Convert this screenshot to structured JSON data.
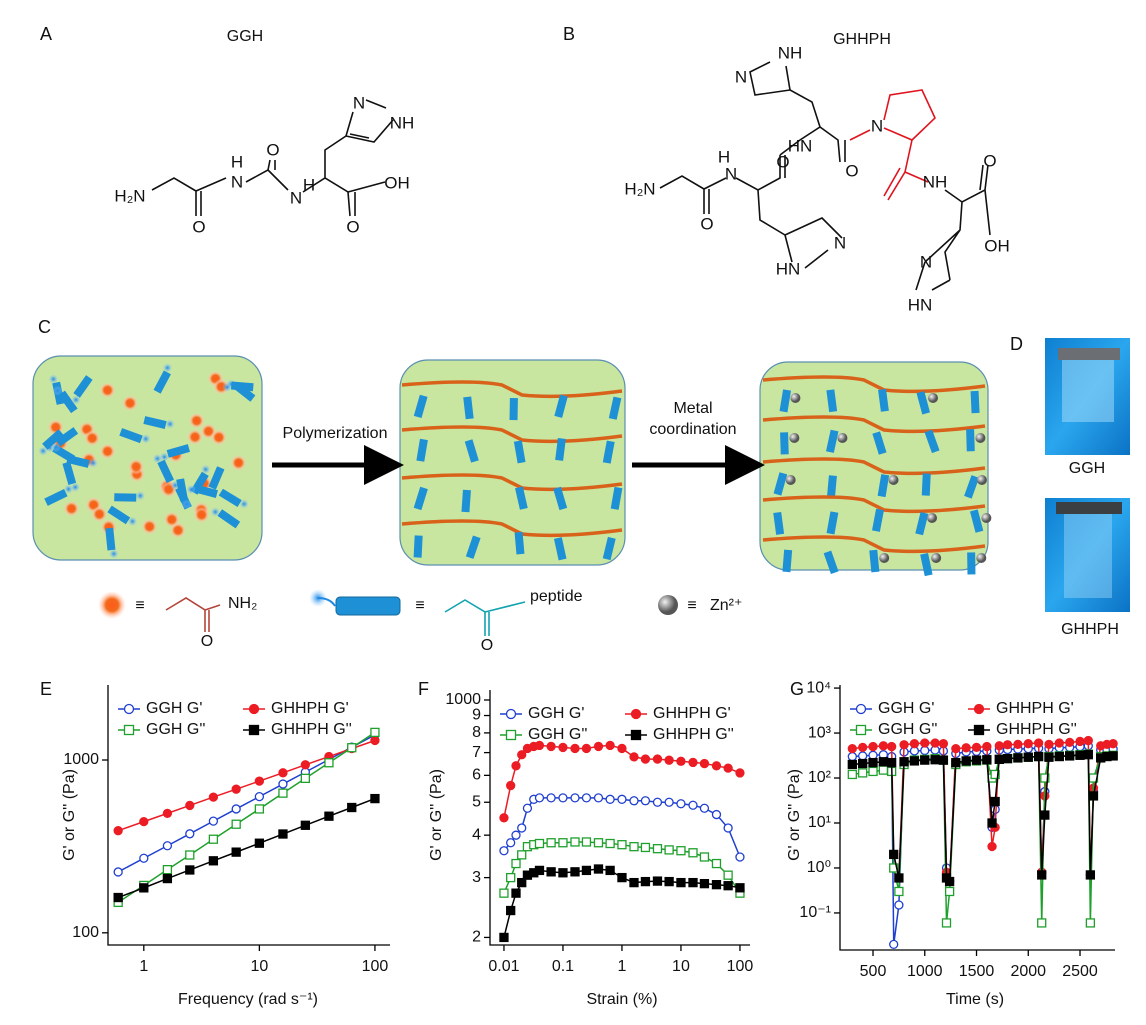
{
  "panel_labels": [
    "A",
    "B",
    "C",
    "D",
    "E",
    "F",
    "G"
  ],
  "structure_a": {
    "title": "GGH",
    "atoms": [
      "H₂N",
      "O",
      "H",
      "N",
      "O",
      "N",
      "H",
      "O",
      "OH",
      "N",
      "NH"
    ]
  },
  "structure_b": {
    "title": "GHHPH",
    "atoms": [
      "NH",
      "N",
      "HN",
      "O",
      "N",
      "H₂N",
      "N",
      "H",
      "O",
      "O",
      "NH",
      "O",
      "OH",
      "N",
      "HN",
      "N",
      "HN"
    ]
  },
  "scheme": {
    "step_1": "Polymerization",
    "step_2": "Metal coordination"
  },
  "legend_items": [
    {
      "symbol": "≡",
      "labels": [
        "NH₂",
        "O"
      ]
    },
    {
      "symbol": "≡",
      "labels": [
        "peptide",
        "O"
      ]
    },
    {
      "symbol": "≡",
      "labels": [
        "Zn²⁺"
      ]
    }
  ],
  "photos": [
    {
      "label": "GGH"
    },
    {
      "label": "GHHPH"
    }
  ],
  "chart_data": [
    {
      "type": "line",
      "xscale": "log",
      "yscale": "log",
      "legend": "upper left",
      "xlabel": "Frequency (rad s⁻¹)",
      "ylabel": "G' or G'' (Pa)",
      "x": [
        0.6,
        1,
        1.6,
        2.5,
        4,
        6.3,
        10,
        16,
        25,
        40,
        63,
        100
      ],
      "xlim": [
        0.49,
        135
      ],
      "xticks": [
        1,
        10,
        100
      ],
      "ylim": [
        85,
        2717
      ],
      "yticks": [
        100,
        1000
      ],
      "series": [
        {
          "name": "GGH G'",
          "color": "#1f3fd0",
          "marker": "circle",
          "filled": false,
          "values": [
            225,
            270,
            319,
            374,
            443,
            521,
            614,
            726,
            851,
            1007,
            1186,
            1396
          ]
        },
        {
          "name": "GHHPH G'",
          "color": "#ec1c24",
          "marker": "circle",
          "filled": true,
          "values": [
            390,
            440,
            491,
            546,
            610,
            678,
            755,
            843,
            938,
            1047,
            1164,
            1297
          ]
        },
        {
          "name": "GGH G''",
          "color": "#1fa02c",
          "marker": "square",
          "filled": false,
          "values": [
            150,
            188,
            232,
            282,
            348,
            425,
            521,
            643,
            783,
            964,
            1178,
            1445
          ]
        },
        {
          "name": "GHHPH G''",
          "color": "#000000",
          "marker": "square",
          "filled": true,
          "values": [
            160,
            182,
            206,
            231,
            261,
            293,
            330,
            373,
            419,
            473,
            531,
            598
          ]
        }
      ]
    },
    {
      "type": "line",
      "xscale": "log",
      "yscale": "log",
      "legend": "upper left",
      "xlabel": "Strain (%)",
      "ylabel": "G' or G'' (Pa)",
      "x": [
        0.01,
        0.013,
        0.016,
        0.02,
        0.025,
        0.032,
        0.04,
        0.063,
        0.1,
        0.16,
        0.25,
        0.4,
        0.63,
        1,
        1.6,
        2.5,
        4,
        6.3,
        10,
        16,
        25,
        40,
        63,
        100
      ],
      "xlim": [
        0.0058,
        148
      ],
      "xticks": [
        0.01,
        0.1,
        1,
        10,
        100
      ],
      "ylim": [
        190,
        1070
      ],
      "yticks": [
        {
          "value": 200,
          "label": "2"
        },
        {
          "value": 300,
          "label": "3"
        },
        {
          "value": 400,
          "label": "4"
        },
        {
          "value": 500,
          "label": "5"
        },
        {
          "value": 600,
          "label": "6"
        },
        {
          "value": 700,
          "label": "7"
        },
        {
          "value": 800,
          "label": "8"
        },
        {
          "value": 900,
          "label": "9"
        },
        1000
      ],
      "series": [
        {
          "name": "GGH G'",
          "color": "#1f3fd0",
          "marker": "circle",
          "filled": false,
          "values": [
            360,
            380,
            400,
            420,
            480,
            510,
            515,
            515,
            515,
            515,
            515,
            515,
            510,
            510,
            505,
            505,
            500,
            500,
            495,
            490,
            480,
            460,
            420,
            345
          ]
        },
        {
          "name": "GHHPH G'",
          "color": "#ec1c24",
          "marker": "circle",
          "filled": true,
          "values": [
            450,
            560,
            640,
            690,
            720,
            730,
            735,
            730,
            725,
            720,
            720,
            730,
            735,
            720,
            680,
            670,
            670,
            665,
            660,
            655,
            650,
            640,
            630,
            610
          ]
        },
        {
          "name": "GGH G''",
          "color": "#1fa02c",
          "marker": "square",
          "filled": false,
          "values": [
            270,
            300,
            330,
            350,
            370,
            375,
            378,
            380,
            380,
            382,
            382,
            380,
            378,
            375,
            370,
            368,
            365,
            362,
            360,
            355,
            345,
            330,
            305,
            270
          ]
        },
        {
          "name": "GHHPH G''",
          "color": "#000000",
          "marker": "square",
          "filled": true,
          "values": [
            200,
            240,
            270,
            290,
            305,
            310,
            315,
            312,
            310,
            312,
            315,
            318,
            315,
            300,
            290,
            292,
            293,
            292,
            290,
            290,
            288,
            286,
            284,
            280
          ]
        }
      ]
    },
    {
      "type": "line",
      "xscale": "linear",
      "yscale": "log",
      "legend": "upper left",
      "xlabel": "Time (s)",
      "ylabel": "G' or G'' (Pa)",
      "x": [
        300,
        400,
        500,
        600,
        680,
        700,
        750,
        800,
        900,
        1000,
        1100,
        1180,
        1210,
        1240,
        1300,
        1400,
        1500,
        1600,
        1650,
        1680,
        1720,
        1800,
        1900,
        2000,
        2100,
        2130,
        2160,
        2200,
        2300,
        2400,
        2500,
        2580,
        2600,
        2630,
        2700,
        2760,
        2820
      ],
      "xlim": [
        181,
        2838
      ],
      "xticks": [
        500,
        1000,
        1500,
        2000,
        2500
      ],
      "ylim": [
        0.015,
        11700
      ],
      "yticks": [
        {
          "value": 0.1,
          "label": "10⁻¹"
        },
        {
          "value": 1,
          "label": "10⁰"
        },
        {
          "value": 10,
          "label": "10¹"
        },
        {
          "value": 100,
          "label": "10²"
        },
        {
          "value": 1000,
          "label": "10³"
        },
        {
          "value": 10000,
          "label": "10⁴"
        }
      ],
      "series": [
        {
          "name": "GGH G'",
          "color": "#1f3fd0",
          "marker": "circle",
          "filled": false,
          "values": [
            300,
            310,
            320,
            330,
            300,
            0.02,
            0.15,
            380,
            400,
            410,
            420,
            400,
            1,
            0.5,
            350,
            380,
            390,
            400,
            8,
            20,
            420,
            430,
            440,
            450,
            460,
            0.8,
            50,
            450,
            470,
            480,
            500,
            520,
            0.7,
            50,
            420,
            430,
            440
          ]
        },
        {
          "name": "GHHPH G'",
          "color": "#ec1c24",
          "marker": "circle",
          "filled": true,
          "values": [
            450,
            480,
            500,
            520,
            500,
            2,
            0.6,
            550,
            580,
            600,
            600,
            580,
            0.8,
            0.5,
            450,
            470,
            480,
            500,
            3,
            8,
            520,
            550,
            560,
            580,
            600,
            0.8,
            40,
            560,
            600,
            620,
            650,
            680,
            0.7,
            60,
            520,
            560,
            580
          ]
        },
        {
          "name": "GGH G''",
          "color": "#1fa02c",
          "marker": "square",
          "filled": false,
          "values": [
            120,
            130,
            140,
            150,
            140,
            1,
            0.3,
            200,
            250,
            260,
            270,
            250,
            0.06,
            0.3,
            200,
            230,
            240,
            250,
            100,
            120,
            260,
            270,
            280,
            290,
            300,
            0.06,
            100,
            300,
            310,
            320,
            330,
            340,
            0.06,
            100,
            300,
            310,
            320
          ]
        },
        {
          "name": "GHHPH G''",
          "color": "#000000",
          "marker": "square",
          "filled": true,
          "values": [
            200,
            210,
            220,
            230,
            220,
            2,
            0.6,
            230,
            240,
            250,
            255,
            250,
            0.6,
            0.5,
            220,
            240,
            250,
            255,
            10,
            30,
            260,
            270,
            280,
            290,
            300,
            0.7,
            15,
            290,
            300,
            310,
            320,
            330,
            0.7,
            40,
            280,
            300,
            310
          ]
        }
      ]
    }
  ]
}
